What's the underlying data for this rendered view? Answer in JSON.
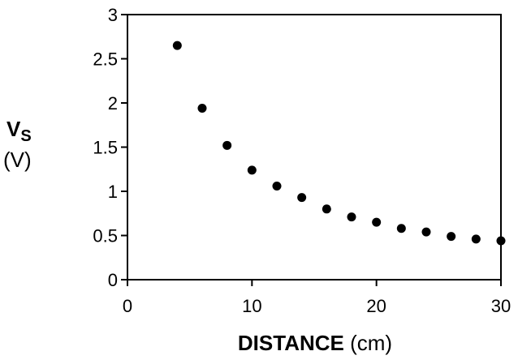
{
  "chart_data": {
    "type": "scatter",
    "title": "",
    "xlabel_bold": "DISTANCE",
    "xlabel_unit": "(cm)",
    "ylabel_main": "V",
    "ylabel_sub": "S",
    "ylabel_unit": "(V)",
    "xlim": [
      0,
      30
    ],
    "ylim": [
      0,
      3
    ],
    "xticks": [
      "0",
      "10",
      "20",
      "30"
    ],
    "yticks": [
      "0",
      "0.5",
      "1",
      "1.5",
      "2",
      "2.5",
      "3"
    ],
    "grid": false,
    "points": [
      {
        "x": 4,
        "y": 2.65
      },
      {
        "x": 6,
        "y": 1.94
      },
      {
        "x": 8,
        "y": 1.52
      },
      {
        "x": 10,
        "y": 1.24
      },
      {
        "x": 12,
        "y": 1.06
      },
      {
        "x": 14,
        "y": 0.93
      },
      {
        "x": 16,
        "y": 0.8
      },
      {
        "x": 18,
        "y": 0.71
      },
      {
        "x": 20,
        "y": 0.65
      },
      {
        "x": 22,
        "y": 0.58
      },
      {
        "x": 24,
        "y": 0.54
      },
      {
        "x": 26,
        "y": 0.49
      },
      {
        "x": 28,
        "y": 0.46
      },
      {
        "x": 30,
        "y": 0.44
      }
    ],
    "marker_color": "#000000"
  }
}
